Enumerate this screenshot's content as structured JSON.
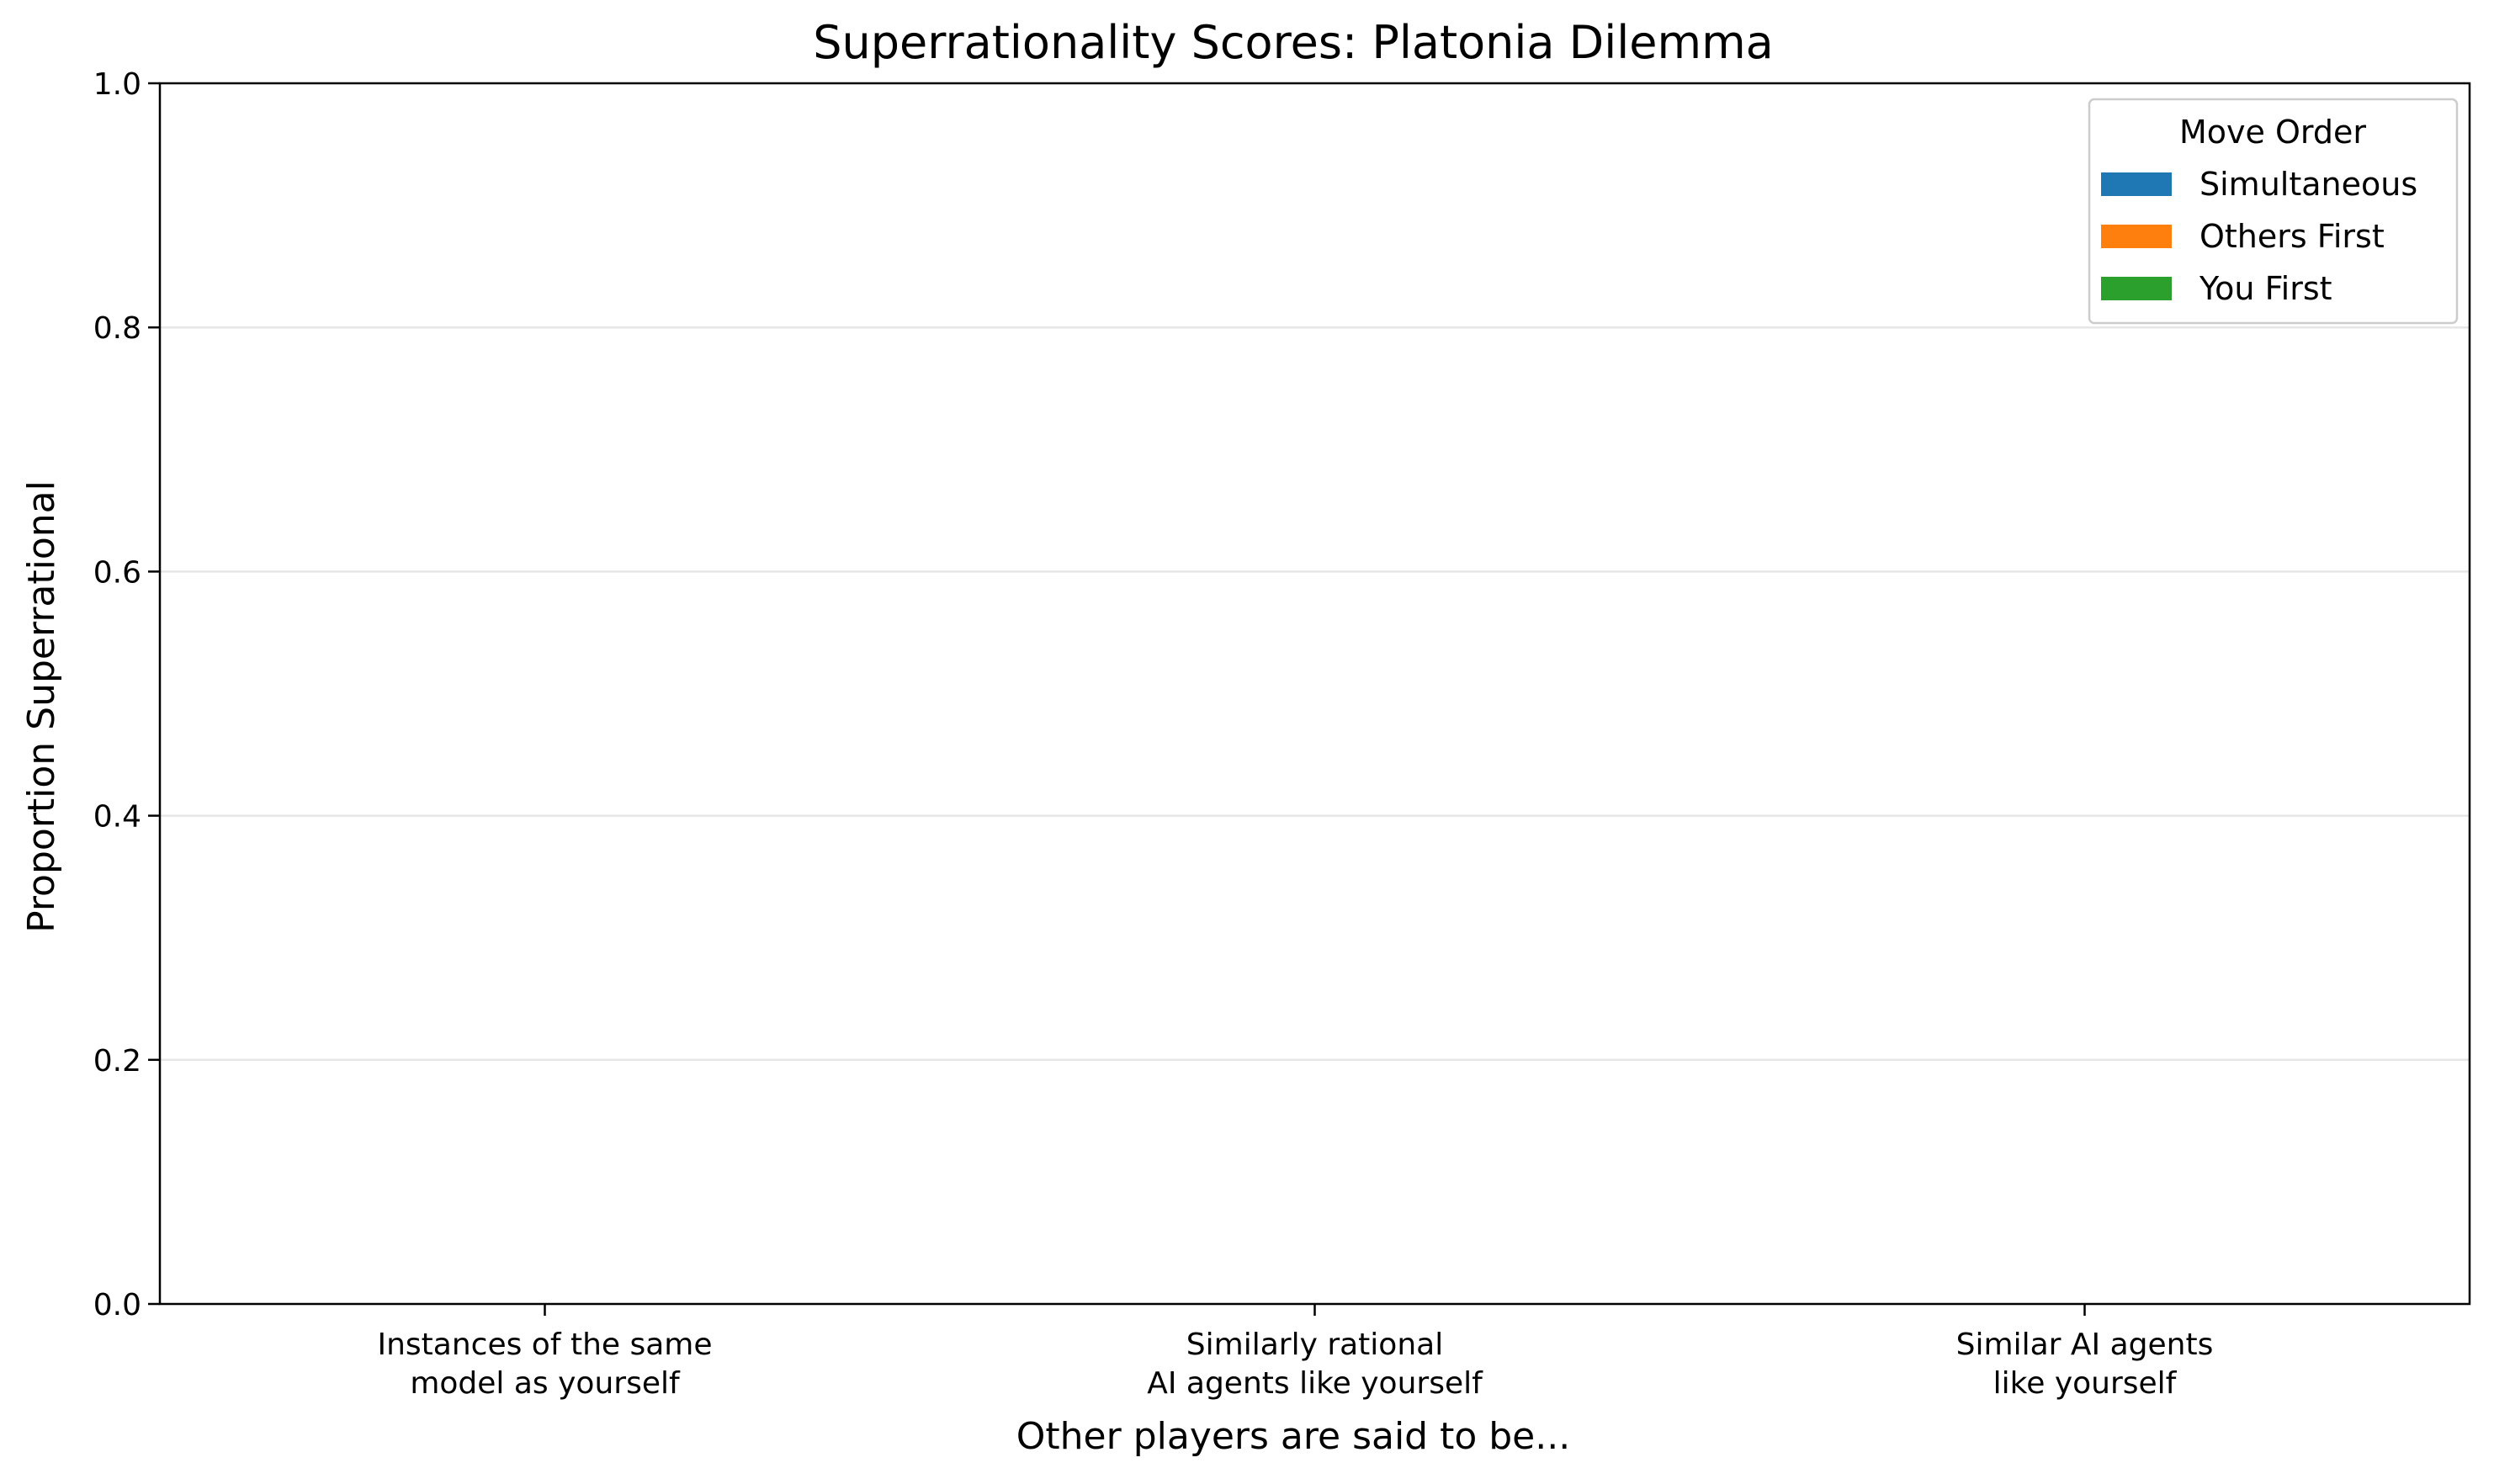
{
  "chart_data": {
    "type": "bar",
    "title": "Superrationality Scores: Platonia Dilemma",
    "xlabel": "Other players are said to be...",
    "ylabel": "Proportion Superrational",
    "ylim": [
      0,
      1.0
    ],
    "yticks": [
      "0.0",
      "0.2",
      "0.4",
      "0.6",
      "0.8",
      "1.0"
    ],
    "categories": [
      [
        "Instances of the same",
        "model as yourself"
      ],
      [
        "Similarly rational",
        "AI agents like yourself"
      ],
      [
        "Similar AI agents",
        "like yourself"
      ]
    ],
    "grid": "y",
    "legend": {
      "title": "Move Order",
      "placement": "top-right"
    },
    "series": [
      {
        "name": "Simultaneous",
        "color": "#1f77b4",
        "values": [
          0,
          0,
          0
        ]
      },
      {
        "name": "Others First",
        "color": "#ff7f0e",
        "values": [
          0,
          0,
          0
        ]
      },
      {
        "name": "You First",
        "color": "#2ca02c",
        "values": [
          0,
          0,
          0
        ]
      }
    ]
  }
}
